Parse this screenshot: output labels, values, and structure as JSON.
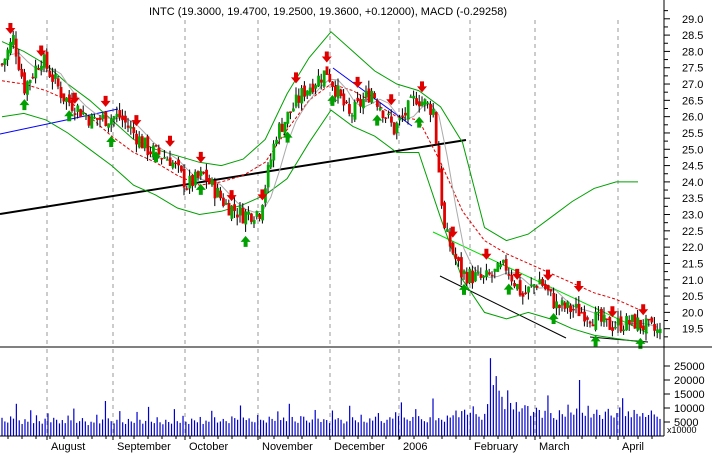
{
  "header": {
    "title": "INTC (19.3000, 19.4700, 19.2500, 19.3600, +0.12000), MACD (-0.29258)"
  },
  "chart_data": [
    {
      "type": "candlestick",
      "title": "INTC (19.3000, 19.4700, 19.2500, 19.3600, +0.12000), MACD (-0.29258)",
      "price_axis": {
        "ylim": [
          19.0,
          29.3
        ],
        "ticks": [
          "29.0",
          "28.5",
          "28.0",
          "27.5",
          "27.0",
          "26.5",
          "26.0",
          "25.5",
          "25.0",
          "24.5",
          "24.0",
          "23.5",
          "23.0",
          "22.5",
          "22.0",
          "21.5",
          "21.0",
          "20.5",
          "20.0",
          "19.5"
        ]
      },
      "x_labels": [
        "August",
        "September",
        "October",
        "November",
        "December",
        "2006",
        "February",
        "March",
        "April"
      ],
      "price_path": [
        [
          0,
          27.6
        ],
        [
          4,
          28.4
        ],
        [
          8,
          26.9
        ],
        [
          14,
          27.8
        ],
        [
          22,
          26.6
        ],
        [
          32,
          25.9
        ],
        [
          42,
          26.0
        ],
        [
          52,
          25.0
        ],
        [
          60,
          24.7
        ],
        [
          66,
          23.9
        ],
        [
          72,
          24.2
        ],
        [
          80,
          23.3
        ],
        [
          86,
          23.0
        ],
        [
          92,
          23.1
        ],
        [
          98,
          25.5
        ],
        [
          108,
          26.8
        ],
        [
          116,
          27.4
        ],
        [
          124,
          26.0
        ],
        [
          132,
          26.8
        ],
        [
          140,
          25.6
        ],
        [
          148,
          26.6
        ],
        [
          154,
          26.2
        ],
        [
          158,
          22.5
        ],
        [
          164,
          21.2
        ],
        [
          172,
          21.0
        ],
        [
          180,
          21.4
        ],
        [
          186,
          20.5
        ],
        [
          192,
          21.0
        ],
        [
          198,
          20.2
        ],
        [
          208,
          20.0
        ],
        [
          216,
          19.6
        ],
        [
          226,
          19.7
        ],
        [
          235,
          19.36
        ]
      ],
      "series": [
        {
          "name": "",
          "values": [
            27.1,
            27.0,
            26.8,
            26.5,
            26.0,
            25.4,
            24.9,
            24.6,
            24.2,
            23.9,
            24.0,
            24.2,
            24.6,
            25.6,
            26.5,
            27.0,
            26.8,
            26.4,
            26.0,
            25.9,
            24.6,
            23.1,
            22.2,
            21.8,
            21.5,
            21.2,
            20.9,
            20.6,
            20.4,
            20.1
          ]
        },
        {
          "name": "",
          "values": [
            28.3,
            28.0,
            27.6,
            27.0,
            26.5,
            25.9,
            25.3,
            25.0,
            24.8,
            24.6,
            24.5,
            24.7,
            25.3,
            26.7,
            27.8,
            28.6,
            28.0,
            27.4,
            27.0,
            26.8,
            26.3,
            25.2,
            22.6,
            22.2,
            22.4,
            22.9,
            23.4,
            23.8,
            24.0,
            24.0
          ]
        },
        {
          "name": "",
          "values": [
            26.0,
            26.1,
            25.9,
            25.5,
            25.0,
            24.5,
            23.9,
            23.6,
            23.2,
            23.0,
            23.1,
            23.3,
            23.6,
            24.1,
            25.2,
            26.2,
            25.7,
            25.4,
            24.9,
            24.9,
            22.9,
            21.0,
            20.0,
            19.8,
            20.0,
            19.8,
            19.5,
            19.3,
            19.2,
            19.1
          ]
        }
      ],
      "markers": {
        "up_arrows": 15,
        "down_arrows": 21
      },
      "trendlines": 5
    },
    {
      "type": "bar",
      "title": "",
      "ylabel": "",
      "unit_label": "x10000",
      "y_ticks": [
        "25000",
        "20000",
        "15000",
        "10000",
        "5000"
      ],
      "ylim": [
        0,
        30000
      ],
      "values": [
        6500,
        5200,
        4800,
        7000,
        6200,
        11500,
        5600,
        4300,
        6000,
        5100,
        9200,
        4600,
        7400,
        5300,
        4400,
        6200,
        8100,
        4900,
        6500,
        5800,
        4500,
        5700,
        4600,
        7300,
        5600,
        9800,
        4700,
        5300,
        6400,
        5200,
        3900,
        5100,
        4800,
        7600,
        4500,
        5900,
        12500,
        6300,
        5300,
        4500,
        5800,
        8900,
        4900,
        4300,
        6100,
        5200,
        4700,
        8600,
        5800,
        4400,
        5400,
        10400,
        5100,
        4600,
        6700,
        4900,
        4200,
        5800,
        5000,
        4400,
        9600,
        5300,
        4700,
        7200,
        5100,
        4300,
        6200,
        5600,
        4900,
        6800,
        4300,
        5500,
        5100,
        9000,
        6700,
        4800,
        5200,
        6100,
        5300,
        4600,
        7000,
        6400,
        5800,
        10900,
        6600,
        5700,
        6300,
        5100,
        4900,
        7500,
        5800,
        5600,
        4800,
        6900,
        6100,
        5400,
        8800,
        5700,
        6600,
        5300,
        11500,
        6800,
        5200,
        4700,
        7100,
        6900,
        5500,
        4800,
        5900,
        9300,
        6200,
        5000,
        6000,
        5700,
        4600,
        9100,
        5900,
        6400,
        5800,
        4500,
        5200,
        10800,
        6700,
        5600,
        4900,
        7600,
        5100,
        4800,
        6300,
        5500,
        6900,
        8200,
        5300,
        4700,
        5800,
        6700,
        6200,
        8500,
        7100,
        12000,
        6600,
        5900,
        5400,
        6800,
        9600,
        7100,
        6000,
        5300,
        4900,
        6700,
        13400,
        5600,
        6400,
        5800,
        5100,
        7300,
        6600,
        7400,
        9100,
        6700,
        8900,
        9400,
        7600,
        8300,
        10600,
        7800,
        6900,
        5800,
        7900,
        11400,
        27800,
        18200,
        21400,
        16200,
        14000,
        9600,
        16300,
        11800,
        9500,
        12100,
        8700,
        9900,
        11000,
        10700,
        7200,
        8600,
        10100,
        9300,
        6500,
        9000,
        14500,
        8200,
        6400,
        5800,
        9200,
        7800,
        6900,
        11200,
        8400,
        7600,
        9800,
        20000,
        8300,
        7200,
        10800,
        6600,
        7900,
        9400,
        7500,
        6100,
        8700,
        9700,
        7300,
        6600,
        8200,
        10200,
        13500,
        7100,
        8800,
        6700,
        9300,
        7900,
        7000,
        8200,
        6800,
        7500,
        9100,
        7700,
        6900,
        6100
      ]
    }
  ]
}
